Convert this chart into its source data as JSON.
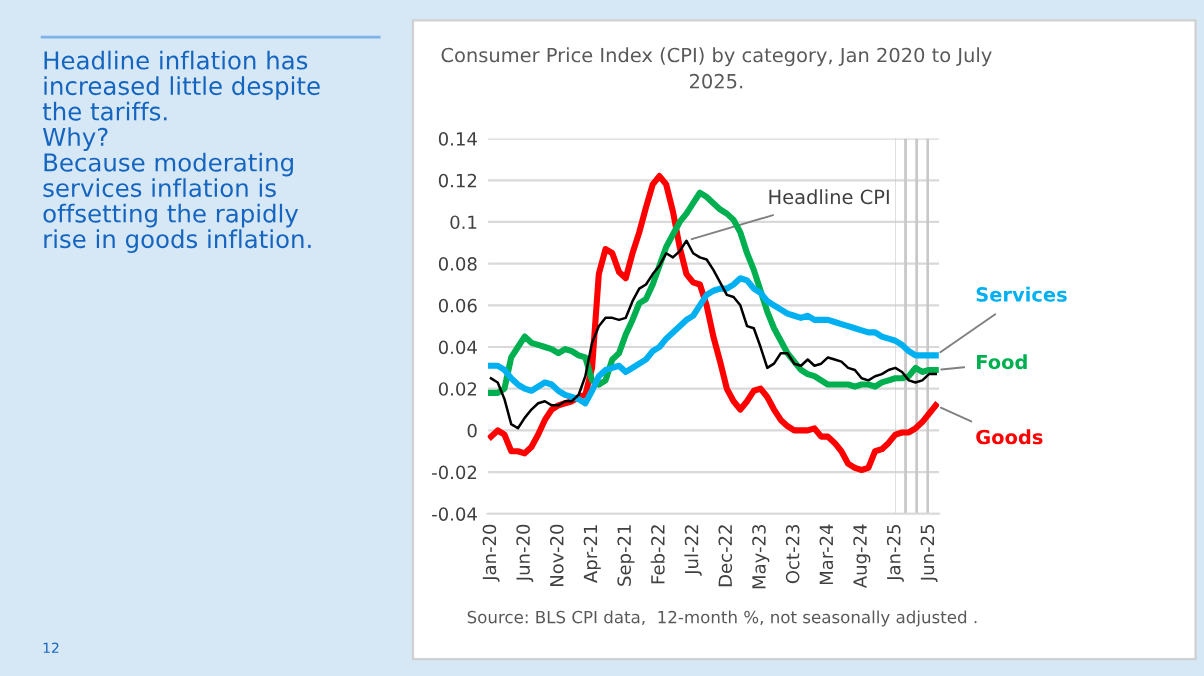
{
  "chart_data": {
    "type": "line",
    "title": "Consumer Price Index (CPI) by category, Jan 2020 to July\n2025.",
    "categories": [
      "Jan-20",
      null,
      null,
      null,
      null,
      "Jun-20",
      null,
      null,
      null,
      null,
      "Nov-20",
      null,
      null,
      null,
      null,
      "Apr-21",
      null,
      null,
      null,
      null,
      "Sep-21",
      null,
      null,
      null,
      null,
      "Feb-22",
      null,
      null,
      null,
      null,
      "Jul-22",
      null,
      null,
      null,
      null,
      "Dec-22",
      null,
      null,
      null,
      null,
      "May-23",
      null,
      null,
      null,
      null,
      "Oct-23",
      null,
      null,
      null,
      null,
      "Mar-24",
      null,
      null,
      null,
      null,
      "Aug-24",
      null,
      null,
      null,
      null,
      "Jan-25",
      null,
      null,
      null,
      null,
      "Jun-25",
      null
    ],
    "series": [
      {
        "name": "Goods",
        "color": "#ff0000",
        "values": [
          -0.003,
          0,
          -0.002,
          -0.01,
          -0.01,
          -0.011,
          -0.008,
          -0.002,
          0.005,
          0.01,
          0.012,
          0.013,
          0.014,
          0.016,
          0.017,
          0.03,
          0.075,
          0.087,
          0.085,
          0.076,
          0.073,
          0.085,
          0.095,
          0.107,
          0.118,
          0.122,
          0.118,
          0.105,
          0.088,
          0.075,
          0.071,
          0.07,
          0.06,
          0.045,
          0.033,
          0.02,
          0.014,
          0.01,
          0.014,
          0.019,
          0.02,
          0.016,
          0.01,
          0.005,
          0.002,
          0.0,
          0.0,
          0.0,
          0.001,
          -0.003,
          -0.003,
          -0.006,
          -0.01,
          -0.016,
          -0.018,
          -0.019,
          -0.018,
          -0.01,
          -0.009,
          -0.006,
          -0.002,
          -0.001,
          -0.001,
          0.001,
          0.004,
          0.008,
          0.012
        ]
      },
      {
        "name": "Food",
        "color": "#00b050",
        "values": [
          0.018,
          0.018,
          0.02,
          0.035,
          0.04,
          0.045,
          0.042,
          0.041,
          0.04,
          0.039,
          0.037,
          0.039,
          0.038,
          0.036,
          0.035,
          0.024,
          0.022,
          0.024,
          0.034,
          0.037,
          0.046,
          0.053,
          0.061,
          0.063,
          0.07,
          0.079,
          0.088,
          0.094,
          0.1,
          0.104,
          0.109,
          0.114,
          0.112,
          0.109,
          0.106,
          0.104,
          0.101,
          0.095,
          0.085,
          0.077,
          0.067,
          0.057,
          0.049,
          0.043,
          0.037,
          0.033,
          0.029,
          0.027,
          0.026,
          0.024,
          0.022,
          0.022,
          0.022,
          0.022,
          0.021,
          0.022,
          0.022,
          0.021,
          0.023,
          0.024,
          0.025,
          0.025,
          0.026,
          0.03,
          0.028,
          0.029,
          0.029
        ]
      },
      {
        "name": "Services",
        "color": "#00b0f0",
        "values": [
          0.031,
          0.031,
          0.029,
          0.025,
          0.022,
          0.02,
          0.019,
          0.021,
          0.023,
          0.022,
          0.019,
          0.017,
          0.016,
          0.015,
          0.013,
          0.019,
          0.026,
          0.029,
          0.03,
          0.031,
          0.028,
          0.03,
          0.032,
          0.034,
          0.038,
          0.04,
          0.044,
          0.047,
          0.05,
          0.053,
          0.055,
          0.06,
          0.065,
          0.067,
          0.068,
          0.068,
          0.07,
          0.073,
          0.072,
          0.068,
          0.066,
          0.062,
          0.06,
          0.058,
          0.056,
          0.055,
          0.054,
          0.055,
          0.053,
          0.053,
          0.053,
          0.052,
          0.051,
          0.05,
          0.049,
          0.048,
          0.047,
          0.047,
          0.045,
          0.044,
          0.043,
          0.041,
          0.038,
          0.036,
          0.036,
          0.036,
          0.036
        ]
      },
      {
        "name": "Headline CPI",
        "color": "#000000",
        "values": [
          0.025,
          0.023,
          0.015,
          0.003,
          0.001,
          0.006,
          0.01,
          0.013,
          0.014,
          0.012,
          0.012,
          0.014,
          0.014,
          0.017,
          0.026,
          0.042,
          0.05,
          0.054,
          0.054,
          0.053,
          0.054,
          0.062,
          0.068,
          0.07,
          0.075,
          0.079,
          0.085,
          0.083,
          0.086,
          0.091,
          0.085,
          0.083,
          0.082,
          0.077,
          0.071,
          0.065,
          0.064,
          0.06,
          0.05,
          0.049,
          0.04,
          0.03,
          0.032,
          0.037,
          0.037,
          0.032,
          0.031,
          0.034,
          0.031,
          0.032,
          0.035,
          0.034,
          0.033,
          0.03,
          0.029,
          0.025,
          0.024,
          0.026,
          0.027,
          0.029,
          0.03,
          0.028,
          0.024,
          0.023,
          0.024,
          0.027,
          0.027
        ]
      }
    ],
    "ylim": [
      -0.04,
      0.14
    ],
    "yticks": [
      {
        "value": -0.04,
        "label": "-0.04"
      },
      {
        "value": -0.02,
        "label": "-0.02"
      },
      0,
      0.02,
      0.04,
      0.06,
      0.08,
      0.1,
      0.12,
      0.14
    ],
    "grid": "y",
    "legend": false,
    "bands": [
      {
        "axis": "x",
        "from": "Jan-25",
        "to": "Jun-25",
        "color": "#c8c8c8"
      }
    ],
    "annotations": [
      "Source: BLS CPI data,  12-month %, not seasonally adjusted .",
      "Headline inflation has\nincreased little despite\nthe tariffs.\nWhy?\nBecause moderating\nservices inflation is\noffsetting the rapidly\nrise in goods inflation.",
      "12"
    ]
  }
}
